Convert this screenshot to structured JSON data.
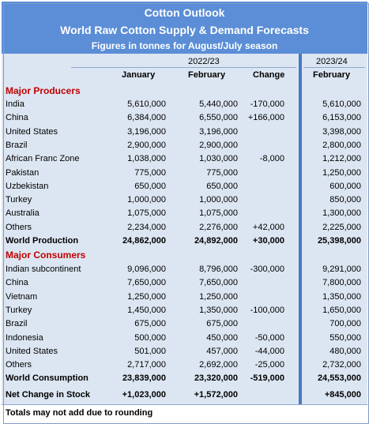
{
  "header": {
    "title": "Cotton Outlook",
    "subtitle": "World Raw Cotton Supply & Demand Forecasts",
    "note": "Figures in tonnes for August/July season"
  },
  "columns": {
    "season_1": "2022/23",
    "season_2": "2023/24",
    "january": "January",
    "february": "February",
    "change": "Change",
    "february_2": "February"
  },
  "producers": {
    "title": "Major Producers",
    "rows": [
      {
        "name": "India",
        "jan": "5,610,000",
        "feb": "5,440,000",
        "chg": "-170,000",
        "next": "5,610,000"
      },
      {
        "name": "China",
        "jan": "6,384,000",
        "feb": "6,550,000",
        "chg": "+166,000",
        "next": "6,153,000"
      },
      {
        "name": "United States",
        "jan": "3,196,000",
        "feb": "3,196,000",
        "chg": "",
        "next": "3,398,000"
      },
      {
        "name": "Brazil",
        "jan": "2,900,000",
        "feb": "2,900,000",
        "chg": "",
        "next": "2,800,000"
      },
      {
        "name": "African Franc Zone",
        "jan": "1,038,000",
        "feb": "1,030,000",
        "chg": "-8,000",
        "next": "1,212,000"
      },
      {
        "name": "Pakistan",
        "jan": "775,000",
        "feb": "775,000",
        "chg": "",
        "next": "1,250,000"
      },
      {
        "name": "Uzbekistan",
        "jan": "650,000",
        "feb": "650,000",
        "chg": "",
        "next": "600,000"
      },
      {
        "name": "Turkey",
        "jan": "1,000,000",
        "feb": "1,000,000",
        "chg": "",
        "next": "850,000"
      },
      {
        "name": "Australia",
        "jan": "1,075,000",
        "feb": "1,075,000",
        "chg": "",
        "next": "1,300,000"
      },
      {
        "name": "Others",
        "jan": "2,234,000",
        "feb": "2,276,000",
        "chg": "+42,000",
        "next": "2,225,000"
      }
    ],
    "total": {
      "name": "World Production",
      "jan": "24,862,000",
      "feb": "24,892,000",
      "chg": "+30,000",
      "next": "25,398,000"
    }
  },
  "consumers": {
    "title": "Major Consumers",
    "rows": [
      {
        "name": "Indian subcontinent",
        "jan": "9,096,000",
        "feb": "8,796,000",
        "chg": "-300,000",
        "next": "9,291,000"
      },
      {
        "name": "China",
        "jan": "7,650,000",
        "feb": "7,650,000",
        "chg": "",
        "next": "7,800,000"
      },
      {
        "name": "Vietnam",
        "jan": "1,250,000",
        "feb": "1,250,000",
        "chg": "",
        "next": "1,350,000"
      },
      {
        "name": "Turkey",
        "jan": "1,450,000",
        "feb": "1,350,000",
        "chg": "-100,000",
        "next": "1,650,000"
      },
      {
        "name": "Brazil",
        "jan": "675,000",
        "feb": "675,000",
        "chg": "",
        "next": "700,000"
      },
      {
        "name": "Indonesia",
        "jan": "500,000",
        "feb": "450,000",
        "chg": "-50,000",
        "next": "550,000"
      },
      {
        "name": "United States",
        "jan": "501,000",
        "feb": "457,000",
        "chg": "-44,000",
        "next": "480,000"
      },
      {
        "name": "Others",
        "jan": "2,717,000",
        "feb": "2,692,000",
        "chg": "-25,000",
        "next": "2,732,000"
      }
    ],
    "total": {
      "name": "World Consumption",
      "jan": "23,839,000",
      "feb": "23,320,000",
      "chg": "-519,000",
      "next": "24,553,000"
    }
  },
  "stock": {
    "name": "Net Change in Stock",
    "jan": "+1,023,000",
    "feb": "+1,572,000",
    "chg": "",
    "next": "+845,000"
  },
  "footer": {
    "note": "Totals may not add due to rounding"
  },
  "colors": {
    "header_bg": "#5b8ed6",
    "body_bg": "#dce6f2",
    "section_red": "#c00000",
    "divider": "#4a78c0"
  }
}
